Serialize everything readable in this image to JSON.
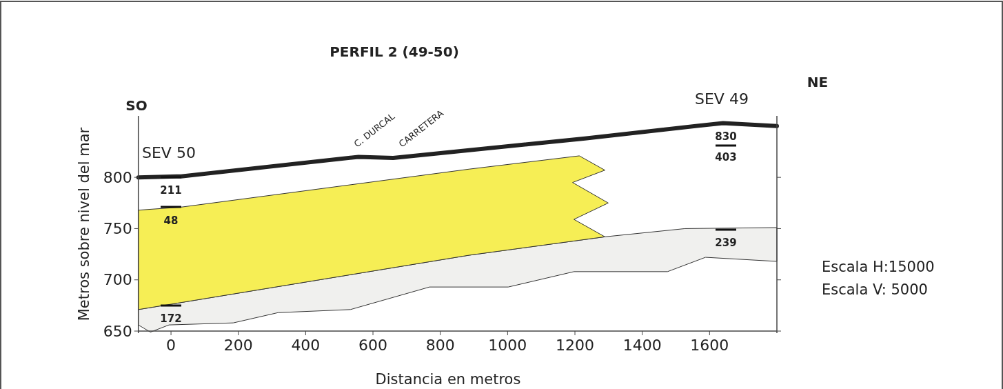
{
  "chart_data": {
    "type": "area",
    "title": "PERFIL 2 (49-50)",
    "xlabel": "Distancia en metros",
    "ylabel": "Metros sobre nivel del mar",
    "xlim": [
      -97,
      1800
    ],
    "ylim": [
      648,
      860
    ],
    "xticks": [
      0,
      200,
      400,
      600,
      800,
      1000,
      1200,
      1400,
      1600
    ],
    "yticks": [
      650,
      700,
      750,
      800
    ],
    "series": [
      {
        "color": "#f0f0ee",
        "x": [
          -97,
          885,
          1289,
          1527,
          1800,
          1800,
          1588,
          1475,
          1197,
          1002,
          768,
          533,
          318,
          185,
          -6,
          -61,
          -97
        ],
        "values": [
          671,
          724,
          742,
          750,
          751,
          718,
          722,
          708,
          708,
          693,
          693,
          671,
          668,
          658,
          656,
          649,
          656
        ]
      },
      {
        "color": "#f6ee55",
        "x": [
          -97,
          31,
          885,
          1213,
          1289,
          1193,
          1299,
          1197,
          1289,
          885,
          -97
        ],
        "values": [
          768,
          771,
          808,
          821,
          807,
          795,
          775,
          759,
          742,
          724,
          671
        ]
      },
      {
        "type": "line",
        "color": "#222222",
        "x": [
          -97,
          30,
          557,
          660,
          1230,
          1640,
          1800
        ],
        "values": [
          800,
          801,
          820,
          819,
          838,
          853,
          850
        ]
      }
    ],
    "annotations": [
      "SO",
      "NE",
      "SEV 50",
      "SEV 49",
      "C. DURCAL",
      "CARRETERA",
      "Escala H:15000",
      "Escala V: 5000",
      "211",
      "48",
      "172",
      "830",
      "403",
      "239"
    ]
  }
}
